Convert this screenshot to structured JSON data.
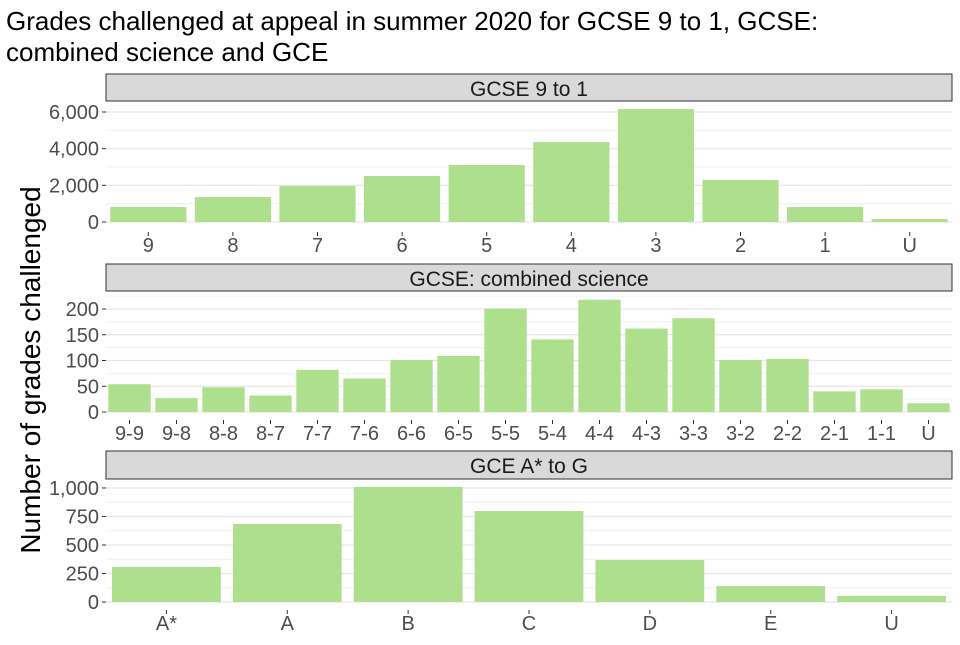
{
  "chart_data": {
    "type": "bar",
    "title": "Grades challenged at appeal in summer 2020 for GCSE 9 to 1, GCSE: combined science and GCE",
    "title_lines": [
      "Grades challenged at appeal in summer 2020 for GCSE 9 to 1, GCSE:",
      "combined science and GCE"
    ],
    "ylabel": "Number of grades challenged",
    "xlabel": "",
    "bar_color": "#addf8d",
    "grid": true,
    "panels": [
      {
        "title": "GCSE 9 to 1",
        "categories": [
          "9",
          "8",
          "7",
          "6",
          "5",
          "4",
          "3",
          "2",
          "1",
          "U"
        ],
        "values": [
          820,
          1360,
          1960,
          2510,
          3110,
          4360,
          6160,
          2290,
          820,
          160
        ],
        "ylim": [
          -545,
          6545
        ],
        "yticks": [
          0,
          2000,
          4000,
          6000
        ],
        "ytick_labels": [
          "0",
          "2,000",
          "4,000",
          "6,000"
        ]
      },
      {
        "title": "GCSE: combined science",
        "categories": [
          "9-9",
          "9-8",
          "8-8",
          "8-7",
          "7-7",
          "7-6",
          "6-6",
          "6-5",
          "5-5",
          "5-4",
          "4-4",
          "4-3",
          "3-3",
          "3-2",
          "2-2",
          "2-1",
          "1-1",
          "U"
        ],
        "values": [
          54,
          27,
          48,
          32,
          82,
          65,
          101,
          109,
          201,
          141,
          218,
          162,
          182,
          101,
          103,
          40,
          44,
          17
        ],
        "ylim": [
          -15.5,
          233
        ],
        "yticks": [
          0,
          50,
          100,
          150,
          200
        ],
        "ytick_labels": [
          "0",
          "50",
          "100",
          "150",
          "200"
        ]
      },
      {
        "title": "GCE A* to G",
        "categories": [
          "A*",
          "A",
          "B",
          "C",
          "D",
          "E",
          "U"
        ],
        "values": [
          307,
          684,
          1009,
          798,
          368,
          140,
          53
        ],
        "ylim": [
          -70,
          1070
        ],
        "yticks": [
          0,
          250,
          500,
          750,
          1000
        ],
        "ytick_labels": [
          "0",
          "250",
          "500",
          "750",
          "1,000"
        ]
      }
    ]
  }
}
